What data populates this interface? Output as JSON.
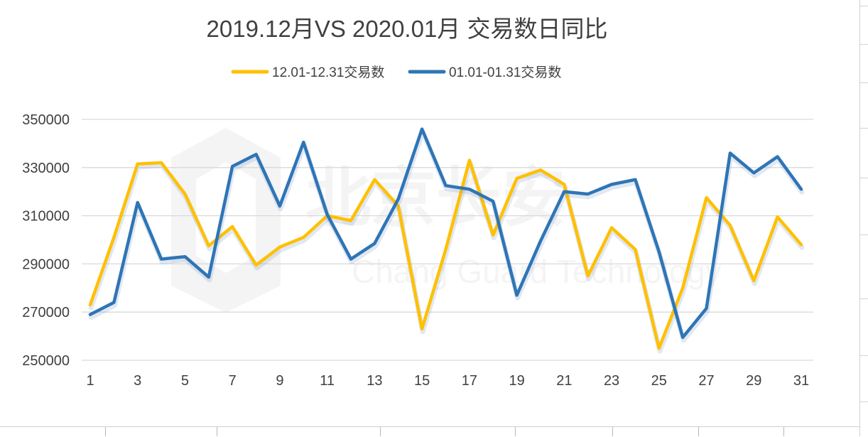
{
  "chart_data": {
    "type": "line",
    "title": "2019.12月VS 2020.01月 交易数日同比",
    "x": [
      1,
      2,
      3,
      4,
      5,
      6,
      7,
      8,
      9,
      10,
      11,
      12,
      13,
      14,
      15,
      16,
      17,
      18,
      19,
      20,
      21,
      22,
      23,
      24,
      25,
      26,
      27,
      28,
      29,
      30,
      31
    ],
    "x_tick_labels": [
      "1",
      "3",
      "5",
      "7",
      "9",
      "11",
      "13",
      "15",
      "17",
      "19",
      "21",
      "23",
      "25",
      "27",
      "29",
      "31"
    ],
    "y_tick_labels": [
      "350000",
      "330000",
      "310000",
      "290000",
      "270000",
      "250000"
    ],
    "ylim": [
      250000,
      350000
    ],
    "grid": true,
    "legend_position": "top",
    "series": [
      {
        "name": "12.01-12.31交易数",
        "color": "#FFC000",
        "values": [
          273000,
          301000,
          331500,
          332000,
          319000,
          297500,
          305500,
          289500,
          297000,
          301000,
          310000,
          308000,
          325000,
          314000,
          263000,
          296000,
          333000,
          302000,
          325500,
          329000,
          323000,
          285000,
          305000,
          296000,
          255000,
          280000,
          317500,
          306000,
          283000,
          309500,
          298000
        ]
      },
      {
        "name": "01.01-01.31交易数",
        "color": "#2E75B6",
        "values": [
          269000,
          274000,
          315500,
          292000,
          293000,
          284500,
          330500,
          335500,
          314000,
          340500,
          310500,
          292000,
          298500,
          317000,
          346000,
          322500,
          321000,
          316000,
          277000,
          299500,
          320000,
          319000,
          323000,
          325000,
          295000,
          259500,
          271500,
          336000,
          327800,
          334500,
          321000
        ]
      }
    ],
    "watermark": {
      "text_cn": "北京长安",
      "text_en": "Chang Guard Technology"
    }
  }
}
